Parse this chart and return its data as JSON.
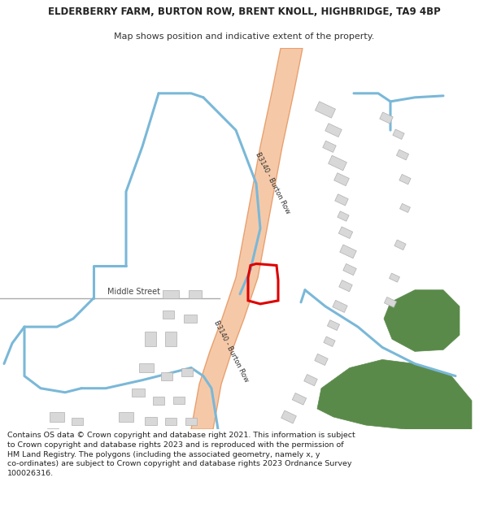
{
  "title_line1": "ELDERBERRY FARM, BURTON ROW, BRENT KNOLL, HIGHBRIDGE, TA9 4BP",
  "title_line2": "Map shows position and indicative extent of the property.",
  "footer": "Contains OS data © Crown copyright and database right 2021. This information is subject to Crown copyright and database rights 2023 and is reproduced with the permission of HM Land Registry. The polygons (including the associated geometry, namely x, y co-ordinates) are subject to Crown copyright and database rights 2023 Ordnance Survey 100026316.",
  "background_color": "#ffffff",
  "map_bg_color": "#f9f9f9",
  "road_color": "#f5c9a8",
  "road_edge_color": "#e8a070",
  "blue_line_color": "#7ab8d8",
  "building_color": "#d8d8d8",
  "building_edge_color": "#b0b0b0",
  "green_area_color": "#5a8a4a",
  "plot_color": "#dd0000",
  "road_label": "B3140 - Burton Row",
  "street_label": "Middle Street",
  "title_fontsize": 8.5,
  "subtitle_fontsize": 8,
  "footer_fontsize": 6.8,
  "title_weight": "bold"
}
